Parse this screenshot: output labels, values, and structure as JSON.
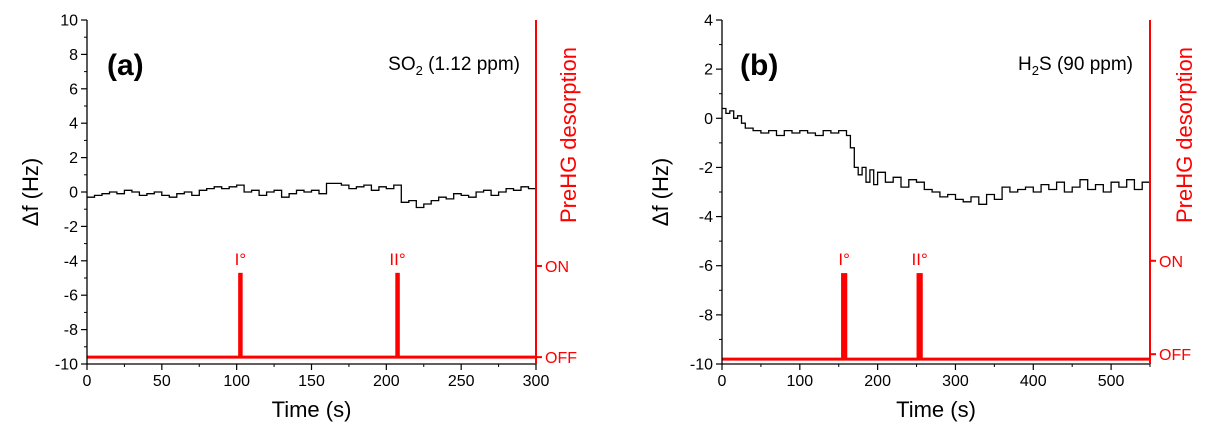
{
  "chart_data": [
    {
      "type": "line",
      "panel_label": "(a)",
      "title_main": "SO",
      "title_sub": "2",
      "title_rest": " (1.12 ppm)",
      "xlabel": "Time (s)",
      "ylabel": "Δf (Hz)",
      "ylabel_right": "PreHG desorption",
      "xlim": [
        0,
        300
      ],
      "ylim": [
        -10,
        10
      ],
      "xticks": [
        0,
        50,
        100,
        150,
        200,
        250,
        300
      ],
      "xtick_labels": [
        "0",
        "50",
        "100",
        "150",
        "200",
        "250",
        "300"
      ],
      "yticks": [
        -10,
        -8,
        -6,
        -4,
        -2,
        0,
        2,
        4,
        6,
        8,
        10
      ],
      "ytick_labels": [
        "-10",
        "-8",
        "-6",
        "-4",
        "-2",
        "0",
        "2",
        "4",
        "6",
        "8",
        "10"
      ],
      "right_axis_labels": [
        "ON",
        "OFF"
      ],
      "right_axis_positions": [
        -4.3,
        -9.6
      ],
      "pulse_labels": [
        "I°",
        "II°"
      ],
      "series": [
        {
          "name": "Δf",
          "color": "#000000",
          "x": [
            0,
            5,
            10,
            15,
            20,
            25,
            30,
            35,
            40,
            45,
            50,
            55,
            60,
            65,
            70,
            75,
            80,
            85,
            90,
            95,
            100,
            105,
            110,
            115,
            120,
            125,
            130,
            135,
            140,
            145,
            150,
            155,
            160,
            165,
            170,
            175,
            180,
            185,
            190,
            195,
            200,
            205,
            210,
            215,
            220,
            225,
            230,
            235,
            240,
            245,
            250,
            255,
            260,
            265,
            270,
            275,
            280,
            285,
            290,
            295,
            300
          ],
          "y": [
            -0.3,
            -0.2,
            -0.1,
            0.0,
            -0.1,
            0.1,
            0.0,
            -0.2,
            -0.1,
            0.0,
            -0.2,
            -0.3,
            -0.1,
            0.0,
            -0.2,
            0.1,
            0.2,
            0.3,
            0.2,
            0.3,
            0.4,
            0.0,
            0.1,
            -0.2,
            0.0,
            0.1,
            -0.3,
            -0.1,
            0.1,
            0.0,
            0.1,
            -0.1,
            0.5,
            0.5,
            0.4,
            0.2,
            0.3,
            0.4,
            0.1,
            0.3,
            0.2,
            0.4,
            -0.6,
            -0.5,
            -0.9,
            -0.7,
            -0.5,
            -0.3,
            -0.4,
            -0.1,
            -0.2,
            -0.3,
            0.0,
            0.1,
            -0.2,
            0.0,
            0.2,
            0.1,
            0.3,
            0.2,
            0.4
          ]
        },
        {
          "name": "PreHG desorption",
          "color": "#ff0000",
          "baseline": -9.6,
          "pulses": [
            {
              "start": 101,
              "end": 104,
              "top": -4.7
            },
            {
              "start": 206,
              "end": 209,
              "top": -4.7
            }
          ]
        }
      ]
    },
    {
      "type": "line",
      "panel_label": "(b)",
      "title_main": "H",
      "title_sub": "2",
      "title_rest": "S (90 ppm)",
      "xlabel": "Time (s)",
      "ylabel": "Δf (Hz)",
      "ylabel_right": "PreHG desorption",
      "xlim": [
        0,
        550
      ],
      "ylim": [
        -10,
        4
      ],
      "xticks": [
        0,
        100,
        200,
        300,
        400,
        500
      ],
      "xtick_labels": [
        "0",
        "100",
        "200",
        "300",
        "400",
        "500"
      ],
      "yticks": [
        -10,
        -8,
        -6,
        -4,
        -2,
        0,
        2,
        4
      ],
      "ytick_labels": [
        "-10",
        "-8",
        "-6",
        "-4",
        "-2",
        "0",
        "2",
        "4"
      ],
      "right_axis_labels": [
        "ON",
        "OFF"
      ],
      "right_axis_positions": [
        -5.8,
        -9.6
      ],
      "pulse_labels": [
        "I°",
        "II°"
      ],
      "series": [
        {
          "name": "Δf",
          "color": "#000000",
          "x": [
            0,
            5,
            10,
            15,
            20,
            25,
            30,
            40,
            50,
            60,
            70,
            80,
            90,
            100,
            110,
            120,
            130,
            140,
            150,
            160,
            165,
            170,
            175,
            180,
            185,
            190,
            195,
            200,
            210,
            220,
            230,
            240,
            250,
            260,
            270,
            280,
            290,
            300,
            310,
            320,
            330,
            340,
            350,
            360,
            370,
            380,
            390,
            400,
            410,
            420,
            430,
            440,
            450,
            460,
            470,
            480,
            490,
            500,
            510,
            520,
            530,
            540,
            550
          ],
          "y": [
            0.4,
            0.2,
            0.3,
            0.0,
            0.1,
            -0.2,
            -0.4,
            -0.5,
            -0.6,
            -0.5,
            -0.7,
            -0.5,
            -0.6,
            -0.5,
            -0.6,
            -0.7,
            -0.5,
            -0.6,
            -0.5,
            -0.7,
            -1.2,
            -2.0,
            -2.3,
            -2.0,
            -2.6,
            -2.1,
            -2.7,
            -2.2,
            -2.6,
            -2.4,
            -2.8,
            -2.5,
            -2.6,
            -2.9,
            -3.0,
            -3.2,
            -3.1,
            -3.3,
            -3.4,
            -3.2,
            -3.5,
            -3.1,
            -3.3,
            -2.8,
            -3.0,
            -2.9,
            -2.8,
            -3.0,
            -2.7,
            -2.9,
            -2.6,
            -3.0,
            -2.8,
            -2.5,
            -2.9,
            -2.7,
            -3.0,
            -2.6,
            -2.8,
            -2.5,
            -2.9,
            -2.6,
            -2.8
          ]
        },
        {
          "name": "PreHG desorption",
          "color": "#ff0000",
          "baseline": -9.8,
          "pulses": [
            {
              "start": 153,
              "end": 161,
              "top": -6.3
            },
            {
              "start": 250,
              "end": 258,
              "top": -6.3
            }
          ]
        }
      ]
    }
  ]
}
